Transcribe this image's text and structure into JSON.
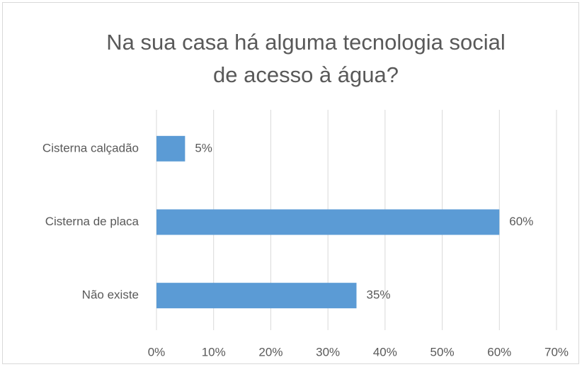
{
  "chart_data": {
    "type": "bar",
    "orientation": "horizontal",
    "title": [
      "Na sua casa há alguma tecnologia social",
      "de acesso à água?"
    ],
    "categories": [
      "Cisterna calçadão",
      "Cisterna de placa",
      "Não existe"
    ],
    "values": [
      5,
      60,
      35
    ],
    "value_labels": [
      "5%",
      "60%",
      "35%"
    ],
    "color": "#5b9bd5",
    "xlim": [
      0,
      70
    ],
    "xticks": [
      {
        "value": 0,
        "label": "0%"
      },
      {
        "value": 10,
        "label": "10%"
      },
      {
        "value": 20,
        "label": "20%"
      },
      {
        "value": 30,
        "label": "30%"
      },
      {
        "value": 40,
        "label": "40%"
      },
      {
        "value": 50,
        "label": "50%"
      },
      {
        "value": 60,
        "label": "60%"
      },
      {
        "value": 70,
        "label": "70%"
      }
    ],
    "grid": true
  }
}
